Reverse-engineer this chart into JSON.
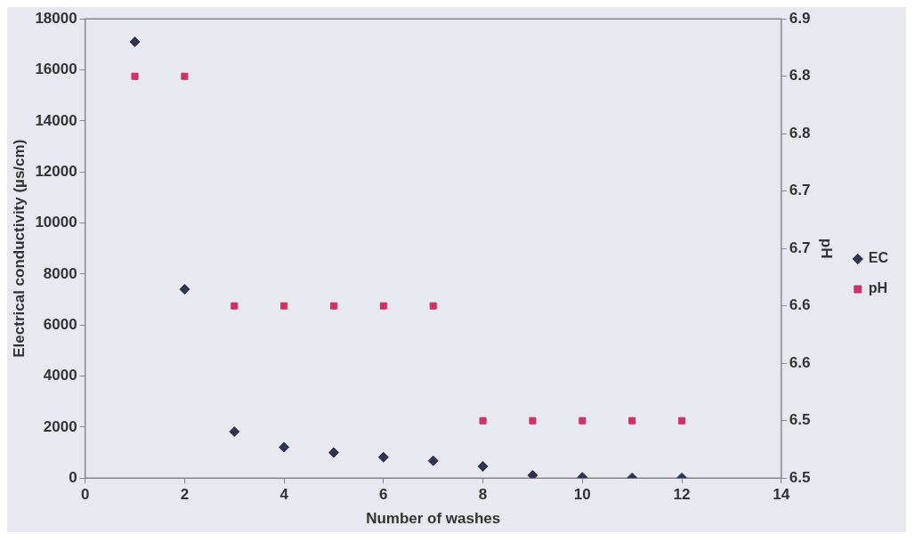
{
  "chart_data": {
    "type": "scatter",
    "xlabel": "Number of washes",
    "ylabel": "Electrical conductivity (µs/cm)",
    "y2label": "pH",
    "x": [
      1,
      2,
      3,
      4,
      5,
      6,
      7,
      8,
      9,
      10,
      11,
      12
    ],
    "series": [
      {
        "name": "EC",
        "color": "#2f3550",
        "marker": "diamond",
        "values": [
          17100,
          7400,
          1820,
          1210,
          1000,
          820,
          680,
          460,
          110,
          30,
          10,
          10
        ]
      },
      {
        "name": "pH",
        "color": "#cc3366",
        "marker": "square",
        "axis": "y2",
        "values": [
          6.85,
          6.85,
          6.65,
          6.65,
          6.65,
          6.65,
          6.65,
          6.55,
          6.55,
          6.55,
          6.55,
          6.55
        ]
      }
    ],
    "xlim": [
      0,
      14
    ],
    "xticks": [
      0,
      2,
      4,
      6,
      8,
      10,
      12,
      14
    ],
    "ylim": [
      0,
      18000
    ],
    "yticks": [
      0,
      2000,
      4000,
      6000,
      8000,
      10000,
      12000,
      14000,
      16000,
      18000
    ],
    "y2lim": [
      6.5,
      6.9
    ],
    "y2ticks": [
      6.5,
      {
        "value": 6.55,
        "label": "6.5"
      },
      6.6,
      {
        "value": 6.65,
        "label": "6.6"
      },
      6.7,
      {
        "value": 6.75,
        "label": "6.7"
      },
      6.8,
      {
        "value": 6.85,
        "label": "6.8"
      },
      6.9
    ],
    "grid": false,
    "legend": "right"
  }
}
